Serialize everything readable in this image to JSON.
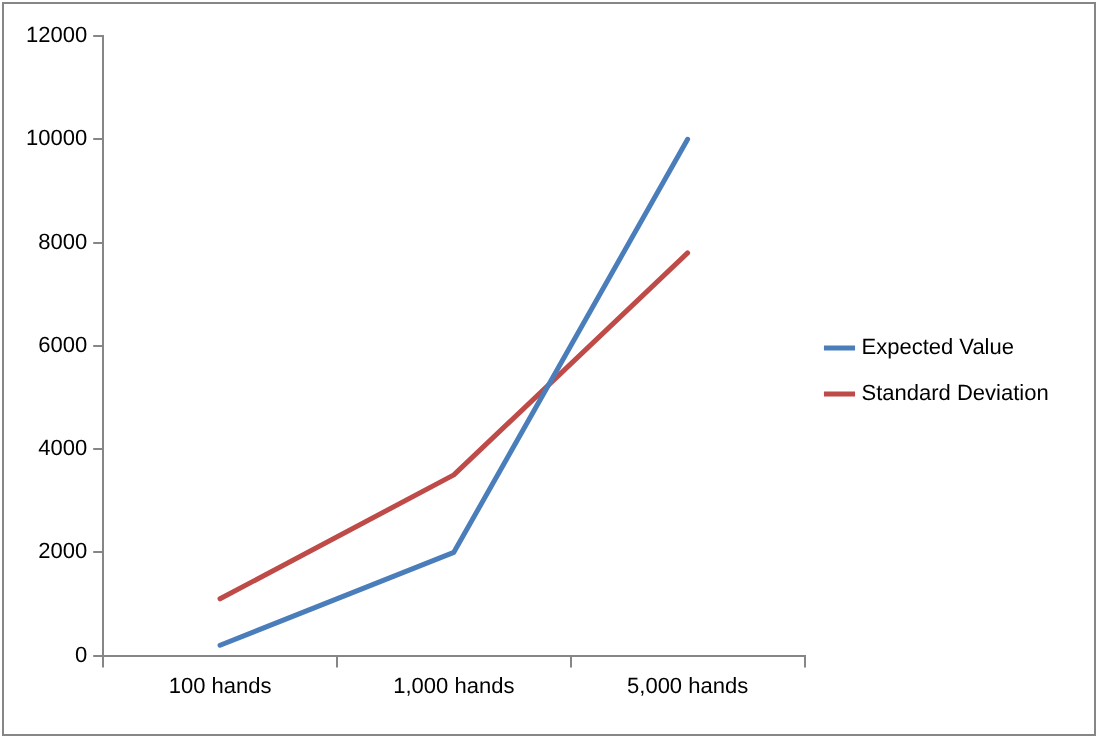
{
  "chart_data": {
    "type": "line",
    "categories": [
      "100 hands",
      "1,000 hands",
      "5,000 hands"
    ],
    "series": [
      {
        "name": "Expected Value",
        "color": "#4a7ebb",
        "values": [
          200,
          2000,
          10000
        ]
      },
      {
        "name": "Standard Deviation",
        "color": "#be4b48",
        "values": [
          1100,
          3500,
          7800
        ]
      }
    ],
    "ylim": [
      0,
      12000
    ],
    "yticks": [
      0,
      2000,
      4000,
      6000,
      8000,
      10000,
      12000
    ],
    "grid": false,
    "legend": "right",
    "marker": "none",
    "line_style": "solid"
  }
}
